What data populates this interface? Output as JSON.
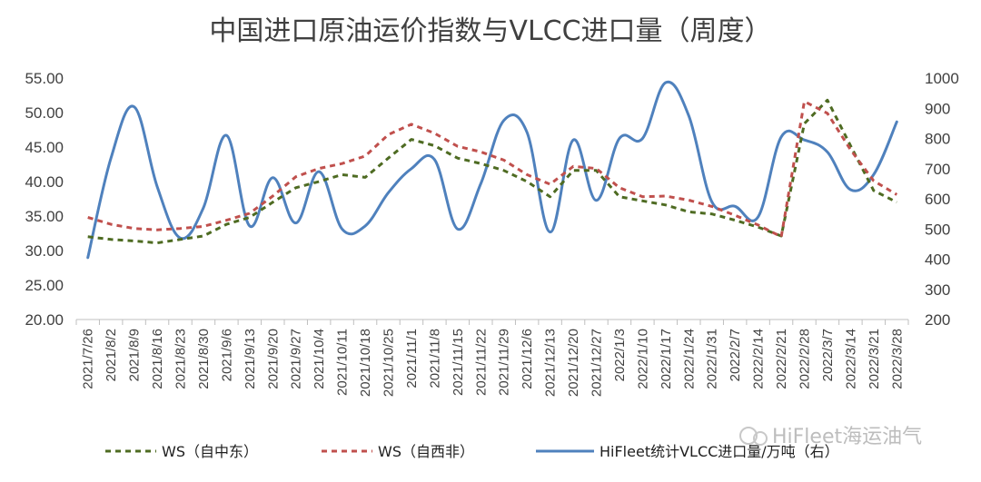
{
  "chart_data": {
    "type": "line",
    "title": "中国进口原油运价指数与VLCC进口量（周度）",
    "categories": [
      "2021/7/26",
      "2021/8/2",
      "2021/8/9",
      "2021/8/16",
      "2021/8/23",
      "2021/8/30",
      "2021/9/6",
      "2021/9/13",
      "2021/9/20",
      "2021/9/27",
      "2021/10/4",
      "2021/10/11",
      "2021/10/18",
      "2021/10/25",
      "2021/11/1",
      "2021/11/8",
      "2021/11/15",
      "2021/11/22",
      "2021/11/29",
      "2021/12/6",
      "2021/12/13",
      "2021/12/20",
      "2021/12/27",
      "2022/1/3",
      "2022/1/10",
      "2022/1/17",
      "2022/1/24",
      "2022/1/31",
      "2022/2/7",
      "2022/2/14",
      "2022/2/21",
      "2022/2/28",
      "2022/3/7",
      "2022/3/14",
      "2022/3/21",
      "2022/3/28"
    ],
    "y_left": {
      "ticks": [
        "55.00",
        "50.00",
        "45.00",
        "40.00",
        "35.00",
        "30.00",
        "25.00",
        "20.00"
      ],
      "ylim": [
        20,
        55
      ]
    },
    "y_right": {
      "ticks": [
        "1000",
        "900",
        "800",
        "700",
        "600",
        "500",
        "400",
        "300",
        "200"
      ],
      "ylim": [
        200,
        1000
      ]
    },
    "series": [
      {
        "name": "WS（自中东）",
        "axis": "left",
        "color": "#4e6b22",
        "dash": "dashed",
        "values": [
          32.0,
          31.6,
          31.4,
          31.1,
          31.6,
          32.1,
          33.8,
          34.8,
          37.0,
          39.1,
          40.0,
          41.0,
          40.6,
          43.4,
          46.1,
          45.2,
          43.4,
          42.6,
          41.6,
          40.0,
          37.8,
          41.6,
          41.6,
          37.8,
          37.2,
          36.6,
          35.6,
          35.3,
          34.4,
          33.4,
          32.1,
          48.4,
          51.8,
          45.2,
          38.7,
          37.0
        ]
      },
      {
        "name": "WS（自西非）",
        "axis": "left",
        "color": "#c0504d",
        "dash": "dashed",
        "values": [
          34.8,
          33.8,
          33.2,
          33.0,
          33.2,
          33.5,
          34.4,
          35.4,
          37.9,
          40.7,
          41.9,
          42.6,
          43.7,
          46.8,
          48.3,
          47.0,
          45.1,
          44.3,
          43.1,
          41.0,
          39.6,
          42.2,
          41.9,
          39.1,
          37.8,
          37.9,
          37.3,
          36.4,
          35.1,
          33.7,
          32.0,
          51.6,
          49.9,
          44.6,
          40.1,
          38.1
        ]
      },
      {
        "name": "HiFleet统计VLCC进口量/万吨（右）",
        "axis": "right",
        "color": "#4f81bd",
        "dash": "solid",
        "values": [
          405,
          735,
          905,
          640,
          470,
          570,
          810,
          510,
          670,
          520,
          690,
          500,
          510,
          620,
          700,
          730,
          500,
          650,
          860,
          820,
          490,
          795,
          595,
          800,
          800,
          985,
          875,
          590,
          575,
          540,
          805,
          795,
          755,
          630,
          680,
          855
        ]
      }
    ]
  },
  "watermark": "HiFleet海运油气"
}
